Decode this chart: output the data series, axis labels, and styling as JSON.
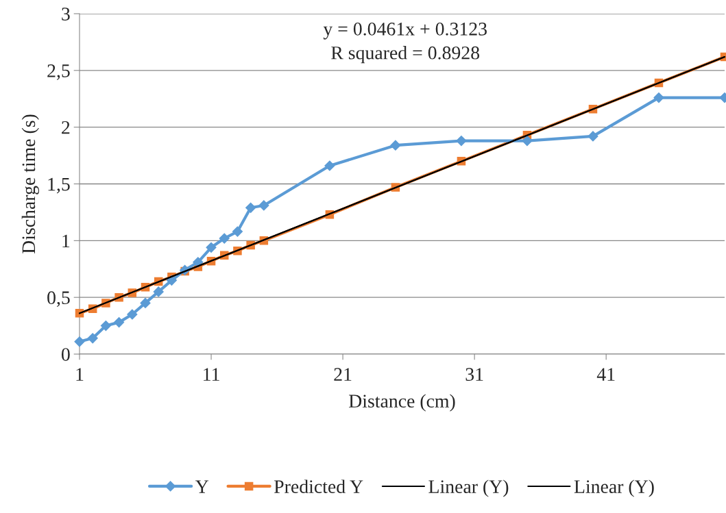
{
  "chart_data": {
    "type": "line",
    "xlabel": "Distance (cm)",
    "ylabel": "Discharge time (s)",
    "xlim": [
      1,
      50
    ],
    "xticks": [
      1,
      11,
      21,
      31,
      41
    ],
    "ylim": [
      0,
      3
    ],
    "yticks": [
      0,
      {
        "value": 0.5,
        "label": "0,5"
      },
      1,
      {
        "value": 1.5,
        "label": "1,5"
      },
      2,
      {
        "value": 2.5,
        "label": "2,5"
      },
      3
    ],
    "grid": "y",
    "legend": "bottom",
    "series": [
      {
        "name": "Y",
        "color": "#5b9bd5",
        "marker": "diamond",
        "x": [
          1,
          2,
          3,
          4,
          5,
          6,
          7,
          8,
          9,
          10,
          11,
          12,
          13,
          14,
          15,
          20,
          25,
          30,
          35,
          40,
          45,
          50
        ],
        "values": [
          0.11,
          0.14,
          0.25,
          0.28,
          0.35,
          0.45,
          0.55,
          0.65,
          0.74,
          0.81,
          0.94,
          1.02,
          1.08,
          1.29,
          1.31,
          1.66,
          1.84,
          1.88,
          1.88,
          1.92,
          2.26,
          2.26
        ]
      },
      {
        "name": "Predicted Y",
        "color": "#ed7d31",
        "marker": "square",
        "x": [
          1,
          2,
          3,
          4,
          5,
          6,
          7,
          8,
          9,
          10,
          11,
          12,
          13,
          14,
          15,
          20,
          25,
          30,
          35,
          40,
          45,
          50
        ],
        "values": [
          0.36,
          0.4,
          0.45,
          0.5,
          0.54,
          0.59,
          0.64,
          0.68,
          0.73,
          0.77,
          0.82,
          0.87,
          0.91,
          0.96,
          1.0,
          1.23,
          1.47,
          1.7,
          1.93,
          2.16,
          2.39,
          2.62
        ]
      },
      {
        "name": "Linear (Y)",
        "color": "#000000",
        "marker": "none",
        "x": [
          1,
          50
        ],
        "values": [
          0.36,
          2.62
        ]
      },
      {
        "name": "Linear (Y)",
        "color": "#000000",
        "marker": "none",
        "x": [
          1,
          50
        ],
        "values": [
          0.36,
          2.62
        ]
      }
    ],
    "annotations": [
      "y = 0.0461x + 0.3123",
      "R squared = 0.8928"
    ]
  }
}
